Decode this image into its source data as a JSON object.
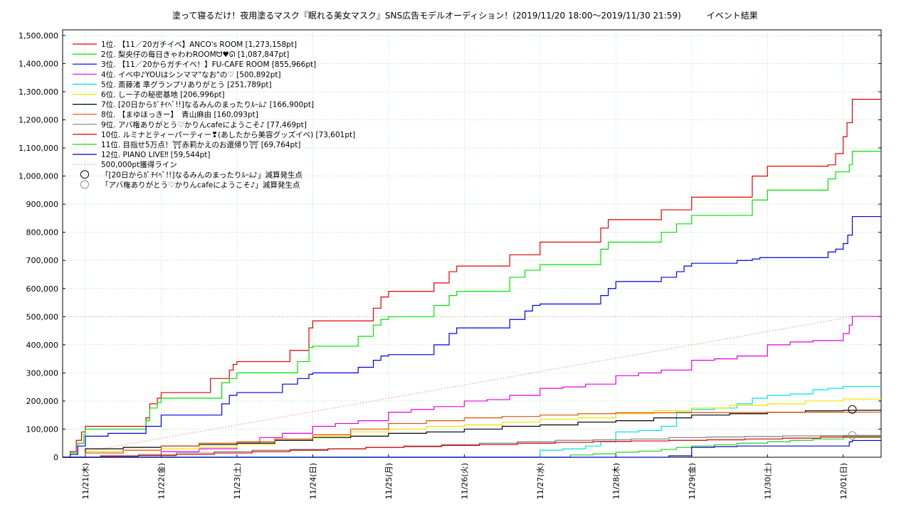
{
  "chart_data": {
    "type": "line",
    "title": "塗って寝るだけ！夜用塗るマスク『眠れる美女マスク』SNS広告モデルオーディション！(2019/11/20 18:00〜2019/11/30 21:59)　　　イベント結果",
    "xlabel": "",
    "ylabel": "",
    "ylim": [
      0,
      1520000
    ],
    "yticks": [
      0,
      100000,
      200000,
      300000,
      400000,
      500000,
      600000,
      700000,
      800000,
      900000,
      1000000,
      1100000,
      1200000,
      1300000,
      1400000,
      1500000
    ],
    "ytick_labels": [
      "0",
      "100,000",
      "200,000",
      "300,000",
      "400,000",
      "500,000",
      "600,000",
      "700,000",
      "800,000",
      "900,000",
      "1,000,000",
      "1,100,000",
      "1,200,000",
      "1,300,000",
      "1,400,000",
      "1,500,000"
    ],
    "xlim": [
      0,
      10.8
    ],
    "xticks": [
      0.3,
      1.3,
      2.3,
      3.3,
      4.3,
      5.3,
      6.3,
      7.3,
      8.3,
      9.3,
      10.3
    ],
    "xtick_labels": [
      "11/21(木)",
      "11/22(金)",
      "11/23(土)",
      "11/24(日)",
      "11/25(月)",
      "11/26(火)",
      "11/27(水)",
      "11/28(木)",
      "11/29(金)",
      "11/30(土)",
      "12/01(日)"
    ],
    "grid": true,
    "legend_position": "top-left",
    "series": [
      {
        "name": "1位. 【11／20ガチイベ】ANCO's ROOM [1,273,158pt]",
        "color": "#e00000",
        "x": [
          0,
          0.1,
          0.18,
          0.25,
          0.3,
          0.6,
          0.9,
          1.1,
          1.15,
          1.25,
          1.3,
          1.6,
          1.9,
          1.95,
          2.1,
          2.2,
          2.25,
          2.3,
          2.6,
          2.9,
          3.0,
          3.25,
          3.3,
          3.65,
          3.9,
          4.1,
          4.2,
          4.3,
          4.65,
          4.9,
          5.1,
          5.2,
          5.65,
          5.9,
          6.1,
          6.3,
          6.65,
          6.9,
          7.1,
          7.2,
          7.65,
          7.9,
          8.1,
          8.3,
          8.65,
          8.9,
          9.1,
          9.3,
          9.65,
          9.9,
          10.1,
          10.2,
          10.3,
          10.35,
          10.42,
          10.8
        ],
        "y": [
          0,
          20000,
          60000,
          90000,
          110000,
          110000,
          110000,
          140000,
          190000,
          210000,
          230000,
          230000,
          230000,
          280000,
          280000,
          310000,
          330000,
          340000,
          340000,
          340000,
          380000,
          460000,
          485000,
          485000,
          485000,
          530000,
          570000,
          590000,
          590000,
          620000,
          660000,
          680000,
          680000,
          720000,
          720000,
          765000,
          765000,
          765000,
          815000,
          845000,
          845000,
          880000,
          880000,
          925000,
          925000,
          925000,
          1000000,
          1035000,
          1035000,
          1035000,
          1040000,
          1080000,
          1140000,
          1190000,
          1273158,
          1273158
        ]
      },
      {
        "name": "2位. 梨央仔の毎日きゃわわROOMᗢ♥ᘏ [1,087,847pt]",
        "color": "#00e000",
        "x": [
          0,
          0.1,
          0.2,
          0.28,
          0.3,
          0.6,
          0.9,
          1.1,
          1.15,
          1.25,
          1.3,
          1.6,
          1.9,
          2.1,
          2.2,
          2.3,
          2.6,
          2.9,
          3.1,
          3.25,
          3.3,
          3.65,
          3.9,
          4.1,
          4.2,
          4.3,
          4.65,
          4.9,
          5.1,
          5.2,
          5.65,
          5.9,
          6.1,
          6.3,
          6.65,
          6.9,
          7.1,
          7.2,
          7.65,
          7.9,
          8.1,
          8.3,
          8.65,
          8.9,
          9.1,
          9.3,
          9.65,
          9.9,
          10.1,
          10.2,
          10.3,
          10.38,
          10.42,
          10.8
        ],
        "y": [
          0,
          15000,
          50000,
          80000,
          100000,
          100000,
          100000,
          130000,
          175000,
          195000,
          210000,
          210000,
          210000,
          265000,
          280000,
          300000,
          300000,
          300000,
          340000,
          390000,
          395000,
          395000,
          430000,
          470000,
          490000,
          500000,
          500000,
          540000,
          575000,
          590000,
          590000,
          640000,
          665000,
          685000,
          685000,
          685000,
          740000,
          765000,
          765000,
          800000,
          830000,
          860000,
          860000,
          860000,
          915000,
          950000,
          950000,
          950000,
          990000,
          1015000,
          1015000,
          1040000,
          1087847,
          1087847
        ]
      },
      {
        "name": "3位. 【11／20からガチイベ！】FU-CAFE ROOM [855,966pt]",
        "color": "#0000e0",
        "x": [
          0,
          0.1,
          0.2,
          0.3,
          0.6,
          0.9,
          1.1,
          1.2,
          1.3,
          1.6,
          1.9,
          2.1,
          2.2,
          2.3,
          2.6,
          2.9,
          3.1,
          3.25,
          3.3,
          3.65,
          3.9,
          4.1,
          4.2,
          4.3,
          4.65,
          4.9,
          5.1,
          5.2,
          5.65,
          5.9,
          6.1,
          6.2,
          6.3,
          6.65,
          6.9,
          7.1,
          7.2,
          7.3,
          7.65,
          7.9,
          8.1,
          8.2,
          8.3,
          8.65,
          8.9,
          9.1,
          9.2,
          9.3,
          9.65,
          9.9,
          10.1,
          10.2,
          10.3,
          10.36,
          10.42,
          10.8
        ],
        "y": [
          0,
          10000,
          40000,
          75000,
          85000,
          85000,
          110000,
          110000,
          150000,
          150000,
          150000,
          190000,
          220000,
          230000,
          230000,
          260000,
          280000,
          295000,
          300000,
          300000,
          320000,
          345000,
          360000,
          365000,
          365000,
          400000,
          440000,
          460000,
          460000,
          490000,
          520000,
          540000,
          545000,
          545000,
          545000,
          575000,
          600000,
          625000,
          625000,
          640000,
          660000,
          680000,
          690000,
          690000,
          700000,
          705000,
          710000,
          710000,
          710000,
          710000,
          730000,
          740000,
          760000,
          790000,
          855966,
          855966
        ]
      },
      {
        "name": "4位. イベ中♪YOUはシンママ\"なお\"の♡ [500,892pt]",
        "color": "#e000e0",
        "x": [
          0,
          0.5,
          1.0,
          1.3,
          1.8,
          2.3,
          2.6,
          2.9,
          3.3,
          3.6,
          3.9,
          4.3,
          4.6,
          4.9,
          5.3,
          5.6,
          5.9,
          6.3,
          6.6,
          6.9,
          7.3,
          7.6,
          7.9,
          8.3,
          8.6,
          8.9,
          9.3,
          9.6,
          9.9,
          10.3,
          10.38,
          10.42,
          10.8
        ],
        "y": [
          0,
          5000,
          10000,
          20000,
          30000,
          50000,
          70000,
          85000,
          110000,
          120000,
          130000,
          160000,
          170000,
          180000,
          200000,
          205000,
          220000,
          245000,
          250000,
          260000,
          290000,
          300000,
          310000,
          345000,
          350000,
          360000,
          400000,
          410000,
          415000,
          440000,
          470000,
          500892,
          500892
        ]
      },
      {
        "name": "5位. 斎藤渚 準グランプリありがとう [251,789pt]",
        "color": "#00e0e0",
        "x": [
          0,
          6.1,
          6.3,
          6.6,
          6.9,
          7.1,
          7.3,
          7.6,
          7.9,
          8.1,
          8.3,
          8.6,
          8.9,
          9.1,
          9.3,
          9.6,
          9.9,
          10.1,
          10.3,
          10.8
        ],
        "y": [
          0,
          0,
          25000,
          30000,
          40000,
          55000,
          90000,
          95000,
          110000,
          160000,
          170000,
          175000,
          190000,
          210000,
          220000,
          225000,
          240000,
          245000,
          251789,
          251789
        ]
      },
      {
        "name": "6位. しー子の秘密基地 [206,996pt]",
        "color": "#f0e000",
        "x": [
          0,
          0.3,
          0.8,
          1.3,
          1.8,
          2.3,
          2.8,
          3.3,
          3.8,
          4.3,
          4.8,
          5.3,
          5.8,
          6.3,
          6.8,
          7.3,
          7.8,
          8.3,
          8.8,
          9.3,
          9.8,
          10.3,
          10.8
        ],
        "y": [
          0,
          20000,
          25000,
          30000,
          35000,
          45000,
          60000,
          75000,
          90000,
          100000,
          110000,
          115000,
          125000,
          135000,
          140000,
          155000,
          165000,
          175000,
          185000,
          190000,
          200000,
          206996,
          206996
        ]
      },
      {
        "name": "7位. [20日からｶﾞﾁｲﾍﾞ!!]なるみんのまったりﾙｰﾑ♪ [166,900pt]",
        "color": "#000000",
        "x": [
          0,
          0.3,
          0.8,
          1.3,
          1.8,
          2.3,
          2.8,
          3.3,
          3.8,
          4.3,
          4.8,
          5.3,
          5.8,
          6.3,
          6.8,
          7.3,
          7.8,
          8.3,
          8.8,
          9.3,
          9.8,
          10.3,
          10.8
        ],
        "y": [
          0,
          30000,
          35000,
          40000,
          45000,
          50000,
          60000,
          70000,
          75000,
          85000,
          90000,
          100000,
          110000,
          115000,
          125000,
          130000,
          140000,
          150000,
          155000,
          160000,
          165000,
          166900,
          166900
        ]
      },
      {
        "name": "8位. 【まゆほっきー】　青山麻由 [160,093pt]",
        "color": "#e05000",
        "x": [
          0,
          0.3,
          0.8,
          1.3,
          1.8,
          2.3,
          2.8,
          3.3,
          3.8,
          4.3,
          4.8,
          5.3,
          5.8,
          6.3,
          6.8,
          7.3,
          7.8,
          8.3,
          8.8,
          9.3,
          9.8,
          10.3,
          10.8
        ],
        "y": [
          0,
          15000,
          25000,
          40000,
          50000,
          55000,
          65000,
          80000,
          100000,
          120000,
          130000,
          140000,
          145000,
          150000,
          155000,
          158000,
          158000,
          159000,
          159000,
          160000,
          160000,
          160093,
          160093
        ]
      },
      {
        "name": "9位. アバ権ありがとう♡かりんcafeにようこそ♪ [77,469pt]",
        "color": "#808080",
        "x": [
          0,
          0.5,
          1.0,
          1.5,
          2.0,
          2.5,
          3.0,
          3.5,
          4.0,
          4.5,
          5.0,
          5.5,
          6.0,
          6.5,
          7.0,
          7.5,
          8.0,
          8.5,
          9.0,
          9.5,
          10.0,
          10.3,
          10.8
        ],
        "y": [
          0,
          5000,
          10000,
          15000,
          20000,
          25000,
          28000,
          30000,
          35000,
          40000,
          45000,
          50000,
          55000,
          60000,
          62000,
          65000,
          70000,
          72000,
          74000,
          76000,
          77000,
          77469,
          77469
        ]
      },
      {
        "name": "10位. ルミナとティーパーティー❣(あしたから美容グッズイベ) [73,601pt]",
        "color": "#d00000",
        "x": [
          0,
          0.5,
          1.0,
          1.5,
          2.0,
          2.5,
          3.0,
          3.5,
          4.0,
          4.5,
          5.0,
          5.5,
          6.0,
          6.5,
          7.0,
          7.5,
          8.0,
          8.5,
          9.0,
          9.5,
          10.0,
          10.3,
          10.8
        ],
        "y": [
          0,
          3000,
          6000,
          10000,
          15000,
          20000,
          25000,
          30000,
          35000,
          38000,
          42000,
          45000,
          50000,
          53000,
          56000,
          58000,
          60000,
          62000,
          65000,
          68000,
          72000,
          73601,
          73601
        ]
      },
      {
        "name": "11位. 目指せ5万点！⛩赤莉かえのお還帰り⛩ [69,764pt]",
        "color": "#20d020",
        "x": [
          0,
          6.5,
          6.7,
          7.0,
          7.3,
          7.6,
          7.9,
          8.1,
          8.3,
          8.6,
          8.9,
          9.3,
          9.6,
          9.9,
          10.3,
          10.8
        ],
        "y": [
          0,
          0,
          8000,
          12000,
          18000,
          22000,
          28000,
          35000,
          40000,
          45000,
          50000,
          55000,
          60000,
          65000,
          69764,
          69764
        ]
      },
      {
        "name": "12位. PIANO LIVE‼ [59,544pt]",
        "color": "#0000c0",
        "x": [
          0,
          7.8,
          8.0,
          8.3,
          8.6,
          8.9,
          9.3,
          9.6,
          9.9,
          10.3,
          10.38,
          10.42,
          10.8
        ],
        "y": [
          0,
          0,
          5000,
          35000,
          38000,
          40000,
          40000,
          40000,
          40000,
          40000,
          55000,
          59544,
          59544
        ]
      }
    ],
    "reference_lines": [
      {
        "name": "500,000pt獲得ライン",
        "color": "#e06060",
        "x": [
          0.3,
          10.42
        ],
        "y": [
          20000,
          500000
        ]
      }
    ],
    "markers": [
      {
        "name": "「[20日からｶﾞﾁｲﾍﾞ!!]なるみんのまったりﾙｰﾑ♪」減算発生点",
        "color": "#000000",
        "x": 10.42,
        "y": 170000
      },
      {
        "name": "「アバ権ありがとう♡かりんcafeにようこそ♪」減算発生点",
        "color": "#909090",
        "x": 10.42,
        "y": 77469
      }
    ]
  }
}
